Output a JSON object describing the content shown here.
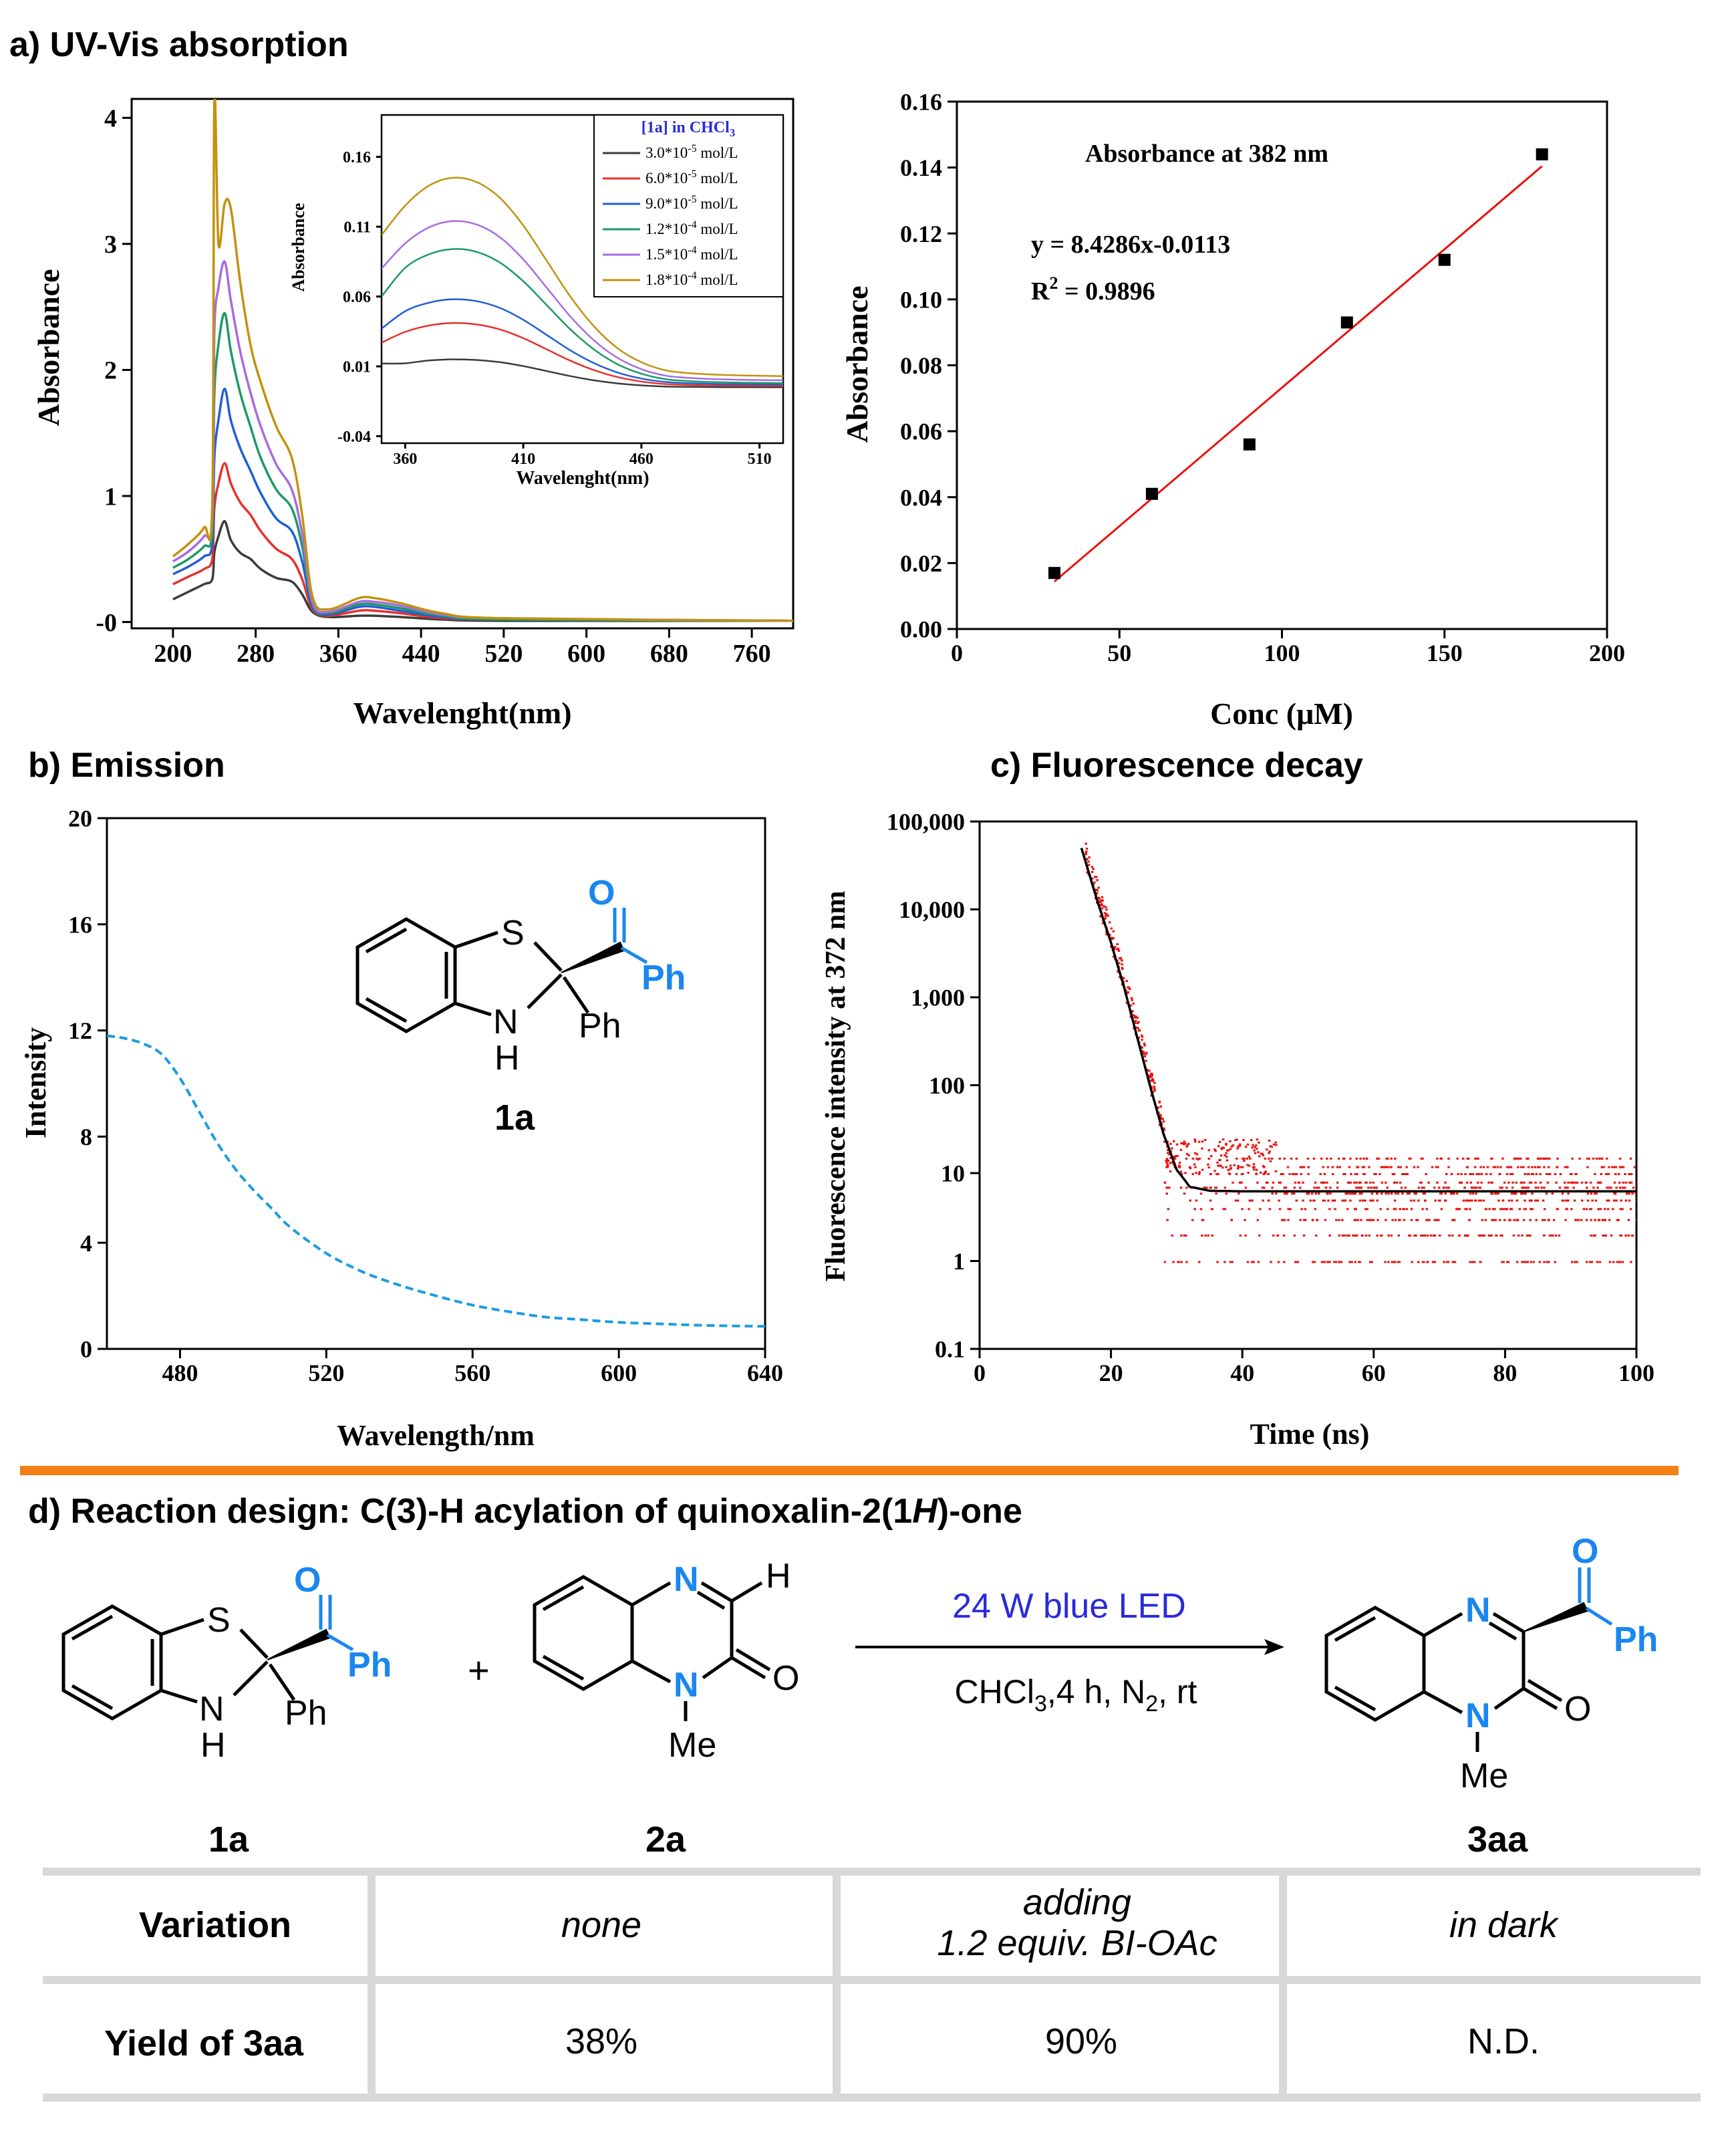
{
  "panels": {
    "a": "a) UV-Vis absorption",
    "b": "b) Emission",
    "c": "c) Fluorescence decay",
    "d_pre": "d) Reaction design: C(3)-H acylation of quinoxalin-2(1",
    "d_H": "H",
    "d_post": ")-one"
  },
  "colors": {
    "divider": "#f47f16",
    "accent_blue": "#1a86f0",
    "led_blue": "#2a2adb",
    "fit_red": "#e8130f",
    "decay_red": "#e8130f",
    "emission_dash": "#1a9de0",
    "table_grid": "#d8d8d8"
  },
  "chart_data": [
    {
      "id": "uv-main",
      "type": "line",
      "xlabel": "Wavelenght(nm)",
      "ylabel": "Absorbance",
      "xlim": [
        160,
        800
      ],
      "ylim": [
        -0.05,
        4.15
      ],
      "xticks": [
        200,
        280,
        360,
        440,
        520,
        600,
        680,
        760
      ],
      "yticks": [
        0,
        1,
        2,
        3,
        4
      ],
      "ytick_labels": [
        "-0",
        "1",
        "2",
        "3",
        "4"
      ],
      "series": [
        {
          "name": "3.0*10^-5 mol/L",
          "color": "#3b3b3b",
          "x": [
            200,
            215,
            230,
            238,
            240,
            244,
            250,
            256,
            265,
            275,
            285,
            300,
            315,
            325,
            335,
            350,
            380,
            395,
            420,
            460,
            520,
            800
          ],
          "y": [
            0.18,
            0.24,
            0.3,
            0.34,
            0.55,
            0.68,
            0.8,
            0.65,
            0.55,
            0.5,
            0.42,
            0.35,
            0.32,
            0.22,
            0.08,
            0.04,
            0.05,
            0.05,
            0.04,
            0.02,
            0.01,
            0.01
          ]
        },
        {
          "name": "6.0*10^-5 mol/L",
          "color": "#e8302c",
          "x": [
            200,
            215,
            230,
            238,
            240,
            244,
            250,
            256,
            265,
            275,
            285,
            300,
            315,
            325,
            335,
            350,
            380,
            395,
            420,
            460,
            520,
            800
          ],
          "y": [
            0.3,
            0.36,
            0.42,
            0.5,
            0.9,
            1.1,
            1.26,
            1.1,
            0.95,
            0.85,
            0.72,
            0.58,
            0.5,
            0.34,
            0.1,
            0.05,
            0.09,
            0.09,
            0.07,
            0.03,
            0.02,
            0.01
          ]
        },
        {
          "name": "9.0*10^-5 mol/L",
          "color": "#1f5ed6",
          "x": [
            200,
            215,
            230,
            238,
            240,
            244,
            250,
            256,
            265,
            275,
            285,
            300,
            315,
            325,
            335,
            350,
            380,
            395,
            420,
            460,
            520,
            800
          ],
          "y": [
            0.38,
            0.44,
            0.52,
            0.62,
            1.3,
            1.6,
            1.85,
            1.6,
            1.38,
            1.2,
            1.02,
            0.82,
            0.72,
            0.48,
            0.12,
            0.06,
            0.12,
            0.12,
            0.09,
            0.04,
            0.02,
            0.01
          ]
        },
        {
          "name": "1.2*10^-4 mol/L",
          "color": "#1c9a64",
          "x": [
            200,
            215,
            230,
            238,
            240,
            244,
            250,
            256,
            265,
            275,
            285,
            300,
            315,
            325,
            335,
            350,
            380,
            395,
            420,
            460,
            520,
            800
          ],
          "y": [
            0.43,
            0.5,
            0.6,
            0.72,
            1.8,
            2.2,
            2.45,
            2.15,
            1.82,
            1.55,
            1.3,
            1.05,
            0.9,
            0.6,
            0.14,
            0.07,
            0.14,
            0.14,
            0.11,
            0.05,
            0.02,
            0.01
          ]
        },
        {
          "name": "1.5*10^-4 mol/L",
          "color": "#a86be0",
          "x": [
            200,
            215,
            230,
            238,
            240,
            244,
            250,
            256,
            265,
            275,
            285,
            300,
            315,
            325,
            335,
            350,
            380,
            395,
            420,
            460,
            520,
            800
          ],
          "y": [
            0.48,
            0.56,
            0.68,
            0.82,
            2.3,
            2.65,
            2.86,
            2.55,
            2.15,
            1.82,
            1.55,
            1.25,
            1.05,
            0.7,
            0.16,
            0.08,
            0.16,
            0.16,
            0.13,
            0.06,
            0.03,
            0.01
          ]
        },
        {
          "name": "1.8*10^-4 mol/L",
          "color": "#c2920e",
          "x": [
            200,
            215,
            230,
            238,
            240,
            244,
            250,
            256,
            265,
            275,
            285,
            300,
            315,
            325,
            335,
            350,
            380,
            395,
            420,
            460,
            520,
            800
          ],
          "y": [
            0.52,
            0.62,
            0.75,
            0.95,
            4.15,
            3.0,
            3.32,
            3.28,
            2.7,
            2.2,
            1.9,
            1.55,
            1.3,
            0.85,
            0.2,
            0.1,
            0.19,
            0.19,
            0.15,
            0.07,
            0.03,
            0.01
          ]
        }
      ]
    },
    {
      "id": "uv-inset",
      "type": "line",
      "title": "[1a] in CHCl",
      "title_sub": "3",
      "xlabel": "Wavelenght(nm)",
      "ylabel": "Absorbance",
      "xlim": [
        350,
        520
      ],
      "ylim": [
        -0.045,
        0.19
      ],
      "xticks": [
        360,
        410,
        460,
        510
      ],
      "yticks": [
        -0.04,
        0.01,
        0.06,
        0.11,
        0.16
      ],
      "legend": [
        {
          "pre": "3.0*10",
          "exp": "-5",
          "post": " mol/L",
          "color": "#3b3b3b"
        },
        {
          "pre": "6.0*10",
          "exp": "-5",
          "post": " mol/L",
          "color": "#e8302c"
        },
        {
          "pre": "9.0*10",
          "exp": "-5",
          "post": " mol/L",
          "color": "#1f5ed6"
        },
        {
          "pre": "1.2*10",
          "exp": "-4",
          "post": " mol/L",
          "color": "#1c9a64"
        },
        {
          "pre": "1.5*10",
          "exp": "-4",
          "post": " mol/L",
          "color": "#a86be0"
        },
        {
          "pre": "1.8*10",
          "exp": "-4",
          "post": " mol/L",
          "color": "#c2920e"
        }
      ],
      "peaks": [
        0.015,
        0.041,
        0.058,
        0.094,
        0.114,
        0.145
      ],
      "base": [
        0.012,
        0.027,
        0.037,
        0.06,
        0.08,
        0.104
      ],
      "tail": [
        -0.005,
        -0.004,
        -0.003,
        -0.002,
        0.0,
        0.003
      ]
    },
    {
      "id": "uv-linear",
      "type": "scatter",
      "title": "Absorbance at 382 nm",
      "equation": "y = 8.4286x-0.0113",
      "r2_label": "R",
      "r2_exp": "2",
      "r2_value": " = 0.9896",
      "xlabel": "Conc (μM)",
      "ylabel": "Absorbance",
      "xlim": [
        0,
        200
      ],
      "ylim": [
        0,
        0.16
      ],
      "xticks": [
        0,
        50,
        100,
        150,
        200
      ],
      "yticks": [
        0.0,
        0.02,
        0.04,
        0.06,
        0.08,
        0.1,
        0.12,
        0.14,
        0.16
      ],
      "ytick_labels": [
        "0.00",
        "0.02",
        "0.04",
        "0.06",
        "0.08",
        "0.10",
        "0.12",
        "0.14",
        "0.16"
      ],
      "x": [
        30,
        60,
        90,
        120,
        150,
        180
      ],
      "y": [
        0.017,
        0.041,
        0.056,
        0.093,
        0.112,
        0.144
      ],
      "fit": {
        "x": [
          30,
          180
        ],
        "y": [
          0.0144,
          0.1404
        ]
      }
    },
    {
      "id": "emission",
      "type": "line",
      "xlabel": "Wavelength/nm",
      "ylabel": "Intensity",
      "xlim": [
        460,
        640
      ],
      "ylim": [
        0,
        20
      ],
      "xticks": [
        480,
        520,
        560,
        600,
        640
      ],
      "yticks": [
        0,
        4,
        8,
        12,
        16,
        20
      ],
      "x": [
        460,
        465,
        470,
        475,
        480,
        485,
        490,
        495,
        500,
        505,
        510,
        520,
        530,
        540,
        550,
        560,
        570,
        580,
        590,
        600,
        610,
        620,
        630,
        640
      ],
      "y": [
        11.8,
        11.7,
        11.5,
        11.1,
        10.2,
        9.0,
        7.8,
        6.8,
        6.0,
        5.3,
        4.6,
        3.6,
        2.9,
        2.4,
        2.0,
        1.65,
        1.4,
        1.2,
        1.1,
        1.0,
        0.95,
        0.9,
        0.87,
        0.85
      ]
    },
    {
      "id": "decay",
      "type": "scatter",
      "xlabel": "Time (ns)",
      "ylabel": "Fluorescence intensity at 372 nm",
      "xlim": [
        0,
        100
      ],
      "ylim_log": [
        0.1,
        100000
      ],
      "xticks": [
        0,
        20,
        40,
        60,
        80,
        100
      ],
      "yticks": [
        0.1,
        1,
        10,
        100,
        1000,
        10000,
        100000
      ],
      "ytick_labels": [
        "0.1",
        "1",
        "10",
        "100",
        "1,000",
        "10,000",
        "100,000"
      ],
      "fit": {
        "x": [
          15.5,
          18,
          20,
          22,
          24,
          26,
          28,
          30,
          32,
          35,
          40,
          60,
          80,
          100
        ],
        "y": [
          50000,
          12000,
          4200,
          1300,
          350,
          95,
          28,
          11,
          7,
          6.3,
          6.2,
          6.2,
          6.2,
          6.2
        ]
      }
    }
  ],
  "structure_1a": {
    "S": "S",
    "N": "N",
    "H": "H",
    "Ph": "Ph",
    "O": "O",
    "PhCO": "Ph",
    "label": "1a"
  },
  "reaction": {
    "r1": {
      "S": "S",
      "N": "N",
      "H": "H",
      "Ph": "Ph",
      "O": "O",
      "PhCO": "Ph",
      "label": "1a"
    },
    "plus": "+",
    "r2": {
      "N1": "N",
      "N2": "N",
      "H": "H",
      "O": "O",
      "Me": "Me",
      "label": "2a"
    },
    "arrow_top": "24 W blue LED",
    "arrow_bottom_pre": "CHCl",
    "arrow_bottom_sub": "3",
    "arrow_bottom_post": ",4 h, N",
    "arrow_bottom_sub2": "2",
    "arrow_bottom_end": ", rt",
    "p": {
      "N1": "N",
      "N2": "N",
      "O": "O",
      "Me": "Me",
      "O2": "O",
      "PhCO": "Ph",
      "label": "3aa"
    }
  },
  "table": {
    "row1": {
      "head": "Variation",
      "c1": "none",
      "c2a": "adding",
      "c2b": "1.2 equiv. BI-OAc",
      "c3": "in dark"
    },
    "row2": {
      "head": "Yield of 3aa",
      "c1": "38%",
      "c2": "90%",
      "c3": "N.D."
    }
  }
}
